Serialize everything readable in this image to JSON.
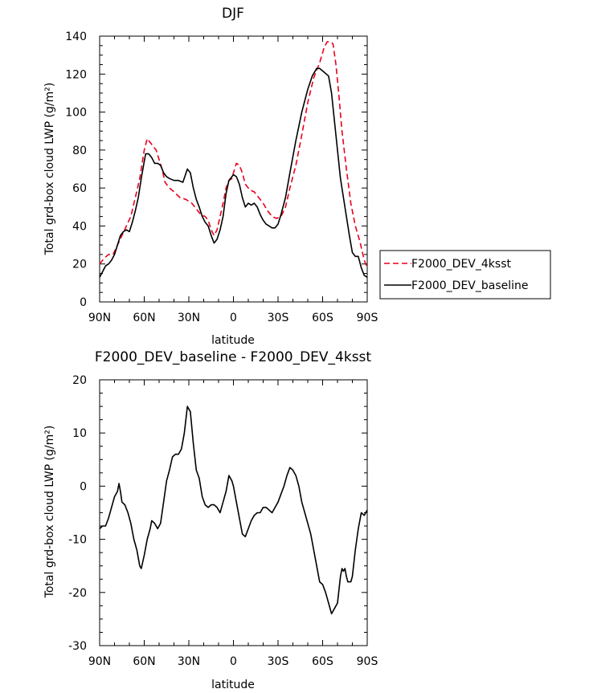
{
  "chart_data": [
    {
      "type": "line",
      "title": "DJF",
      "xlabel": "latitude",
      "ylabel": "Total grd-box cloud LWP (g/m²)",
      "xlim": [
        90,
        -90
      ],
      "ylim": [
        0,
        140
      ],
      "xticks": [
        {
          "value": 90,
          "label": "90N"
        },
        {
          "value": 60,
          "label": "60N"
        },
        {
          "value": 30,
          "label": "30N"
        },
        {
          "value": 0,
          "label": "0"
        },
        {
          "value": -30,
          "label": "30S"
        },
        {
          "value": -60,
          "label": "60S"
        },
        {
          "value": -90,
          "label": "90S"
        }
      ],
      "yticks": [
        0,
        20,
        40,
        60,
        80,
        100,
        120,
        140
      ],
      "legend": {
        "placement": "right"
      },
      "series": [
        {
          "name": "F2000_DEV_4ksst",
          "color": "#e8001c",
          "dash": "dashed",
          "points": [
            [
              90,
              20
            ],
            [
              87,
              23
            ],
            [
              84,
              25
            ],
            [
              81,
              25
            ],
            [
              78,
              30
            ],
            [
              75,
              35
            ],
            [
              72,
              40
            ],
            [
              69,
              45
            ],
            [
              66,
              55
            ],
            [
              63,
              65
            ],
            [
              60,
              80
            ],
            [
              58,
              86
            ],
            [
              56,
              84
            ],
            [
              54,
              82
            ],
            [
              52,
              80
            ],
            [
              50,
              75
            ],
            [
              48,
              70
            ],
            [
              46,
              63
            ],
            [
              43,
              60
            ],
            [
              40,
              58
            ],
            [
              36,
              55
            ],
            [
              32,
              54
            ],
            [
              28,
              52
            ],
            [
              25,
              49
            ],
            [
              22,
              46
            ],
            [
              19,
              45
            ],
            [
              17,
              43
            ],
            [
              15,
              38
            ],
            [
              13,
              35
            ],
            [
              11,
              38
            ],
            [
              9,
              45
            ],
            [
              7,
              52
            ],
            [
              5,
              60
            ],
            [
              3,
              64
            ],
            [
              1,
              65
            ],
            [
              0,
              68
            ],
            [
              -2,
              73
            ],
            [
              -4,
              72
            ],
            [
              -6,
              68
            ],
            [
              -8,
              62
            ],
            [
              -11,
              59
            ],
            [
              -14,
              58
            ],
            [
              -17,
              55
            ],
            [
              -20,
              52
            ],
            [
              -23,
              48
            ],
            [
              -26,
              45
            ],
            [
              -29,
              44
            ],
            [
              -32,
              45
            ],
            [
              -35,
              50
            ],
            [
              -38,
              60
            ],
            [
              -42,
              72
            ],
            [
              -46,
              88
            ],
            [
              -50,
              105
            ],
            [
              -54,
              118
            ],
            [
              -58,
              126
            ],
            [
              -61,
              134
            ],
            [
              -63,
              137
            ],
            [
              -65,
              137
            ],
            [
              -67,
              136
            ],
            [
              -69,
              125
            ],
            [
              -71,
              108
            ],
            [
              -73,
              90
            ],
            [
              -76,
              70
            ],
            [
              -79,
              52
            ],
            [
              -82,
              40
            ],
            [
              -85,
              32
            ],
            [
              -88,
              22
            ],
            [
              -90,
              18
            ]
          ]
        },
        {
          "name": "F2000_DEV_baseline",
          "color": "#000000",
          "dash": "solid",
          "points": [
            [
              90,
              13
            ],
            [
              88,
              16
            ],
            [
              86,
              19
            ],
            [
              84,
              20
            ],
            [
              82,
              22
            ],
            [
              80,
              25
            ],
            [
              78,
              30
            ],
            [
              76,
              35
            ],
            [
              74,
              37
            ],
            [
              72,
              38
            ],
            [
              70,
              37
            ],
            [
              68,
              42
            ],
            [
              66,
              48
            ],
            [
              64,
              55
            ],
            [
              62,
              65
            ],
            [
              60,
              74
            ],
            [
              59,
              78
            ],
            [
              57,
              78
            ],
            [
              55,
              76
            ],
            [
              53,
              73
            ],
            [
              51,
              73
            ],
            [
              49,
              72
            ],
            [
              47,
              68
            ],
            [
              45,
              66
            ],
            [
              43,
              65
            ],
            [
              40,
              64
            ],
            [
              37,
              64
            ],
            [
              34,
              63
            ],
            [
              31,
              70
            ],
            [
              29,
              68
            ],
            [
              27,
              60
            ],
            [
              25,
              54
            ],
            [
              23,
              50
            ],
            [
              21,
              45
            ],
            [
              19,
              42
            ],
            [
              17,
              40
            ],
            [
              15,
              35
            ],
            [
              13,
              31
            ],
            [
              11,
              33
            ],
            [
              9,
              38
            ],
            [
              7,
              45
            ],
            [
              5,
              57
            ],
            [
              3,
              64
            ],
            [
              1,
              66
            ],
            [
              0,
              67
            ],
            [
              -2,
              66
            ],
            [
              -4,
              62
            ],
            [
              -6,
              55
            ],
            [
              -8,
              50
            ],
            [
              -10,
              52
            ],
            [
              -12,
              51
            ],
            [
              -14,
              52
            ],
            [
              -16,
              50
            ],
            [
              -18,
              46
            ],
            [
              -20,
              43
            ],
            [
              -22,
              41
            ],
            [
              -24,
              40
            ],
            [
              -26,
              39
            ],
            [
              -28,
              39
            ],
            [
              -30,
              41
            ],
            [
              -32,
              46
            ],
            [
              -35,
              55
            ],
            [
              -38,
              68
            ],
            [
              -42,
              85
            ],
            [
              -46,
              100
            ],
            [
              -50,
              112
            ],
            [
              -53,
              119
            ],
            [
              -56,
              123
            ],
            [
              -58,
              123
            ],
            [
              -61,
              121
            ],
            [
              -64,
              119
            ],
            [
              -66,
              110
            ],
            [
              -68,
              95
            ],
            [
              -70,
              80
            ],
            [
              -72,
              65
            ],
            [
              -74,
              55
            ],
            [
              -76,
              45
            ],
            [
              -78,
              35
            ],
            [
              -80,
              26
            ],
            [
              -82,
              24
            ],
            [
              -84,
              24
            ],
            [
              -86,
              18
            ],
            [
              -88,
              14
            ],
            [
              -90,
              13
            ]
          ]
        }
      ]
    },
    {
      "type": "line",
      "title": "F2000_DEV_baseline - F2000_DEV_4ksst",
      "xlabel": "latitude",
      "ylabel": "Total grd-box cloud LWP (g/m²)",
      "xlim": [
        90,
        -90
      ],
      "ylim": [
        -30,
        20
      ],
      "xticks": [
        {
          "value": 90,
          "label": "90N"
        },
        {
          "value": 60,
          "label": "60N"
        },
        {
          "value": 30,
          "label": "30N"
        },
        {
          "value": 0,
          "label": "0"
        },
        {
          "value": -30,
          "label": "30S"
        },
        {
          "value": -60,
          "label": "60S"
        },
        {
          "value": -90,
          "label": "90S"
        }
      ],
      "yticks": [
        -30,
        -20,
        -10,
        0,
        10,
        20
      ],
      "series": [
        {
          "color": "#000000",
          "dash": "solid",
          "points": [
            [
              90,
              -8
            ],
            [
              88,
              -7.5
            ],
            [
              86,
              -7.5
            ],
            [
              84,
              -6
            ],
            [
              82,
              -4
            ],
            [
              80,
              -2
            ],
            [
              78,
              -1
            ],
            [
              77,
              0.5
            ],
            [
              76,
              -1
            ],
            [
              75,
              -3
            ],
            [
              73,
              -3.5
            ],
            [
              71,
              -5
            ],
            [
              69,
              -7
            ],
            [
              67,
              -10
            ],
            [
              65,
              -12
            ],
            [
              63,
              -15
            ],
            [
              62,
              -15.5
            ],
            [
              60,
              -13
            ],
            [
              58,
              -10
            ],
            [
              56,
              -8
            ],
            [
              55,
              -6.5
            ],
            [
              53,
              -7
            ],
            [
              51,
              -8
            ],
            [
              49,
              -7
            ],
            [
              47,
              -3
            ],
            [
              45,
              1
            ],
            [
              43,
              3
            ],
            [
              41,
              5.5
            ],
            [
              39,
              6
            ],
            [
              37,
              6
            ],
            [
              35,
              7
            ],
            [
              33,
              10
            ],
            [
              31,
              15
            ],
            [
              29,
              14
            ],
            [
              27,
              8
            ],
            [
              25,
              3
            ],
            [
              23,
              1.5
            ],
            [
              21,
              -2
            ],
            [
              19,
              -3.5
            ],
            [
              17,
              -4
            ],
            [
              15,
              -3.5
            ],
            [
              13,
              -3.5
            ],
            [
              11,
              -4
            ],
            [
              9,
              -5
            ],
            [
              7,
              -3
            ],
            [
              5,
              -1
            ],
            [
              3,
              2
            ],
            [
              1,
              1
            ],
            [
              0,
              0
            ],
            [
              -2,
              -3
            ],
            [
              -4,
              -6
            ],
            [
              -6,
              -9
            ],
            [
              -8,
              -9.5
            ],
            [
              -10,
              -8
            ],
            [
              -12,
              -6.5
            ],
            [
              -14,
              -5.5
            ],
            [
              -16,
              -5
            ],
            [
              -18,
              -5
            ],
            [
              -20,
              -4
            ],
            [
              -22,
              -4
            ],
            [
              -24,
              -4.5
            ],
            [
              -26,
              -5
            ],
            [
              -28,
              -4
            ],
            [
              -30,
              -3
            ],
            [
              -32,
              -1.5
            ],
            [
              -34,
              0
            ],
            [
              -36,
              2
            ],
            [
              -38,
              3.5
            ],
            [
              -40,
              3
            ],
            [
              -42,
              2
            ],
            [
              -44,
              0
            ],
            [
              -46,
              -3
            ],
            [
              -48,
              -5
            ],
            [
              -50,
              -7
            ],
            [
              -52,
              -9
            ],
            [
              -54,
              -12
            ],
            [
              -56,
              -15
            ],
            [
              -58,
              -18
            ],
            [
              -60,
              -18.5
            ],
            [
              -62,
              -20
            ],
            [
              -64,
              -22
            ],
            [
              -66,
              -24
            ],
            [
              -68,
              -23
            ],
            [
              -70,
              -22
            ],
            [
              -72,
              -17
            ],
            [
              -73,
              -15.5
            ],
            [
              -74,
              -16
            ],
            [
              -75,
              -15.5
            ],
            [
              -76,
              -17
            ],
            [
              -77,
              -18
            ],
            [
              -79,
              -18
            ],
            [
              -80,
              -17
            ],
            [
              -82,
              -12
            ],
            [
              -84,
              -8
            ],
            [
              -86,
              -5
            ],
            [
              -88,
              -5.5
            ],
            [
              -90,
              -4.5
            ]
          ]
        }
      ]
    }
  ]
}
